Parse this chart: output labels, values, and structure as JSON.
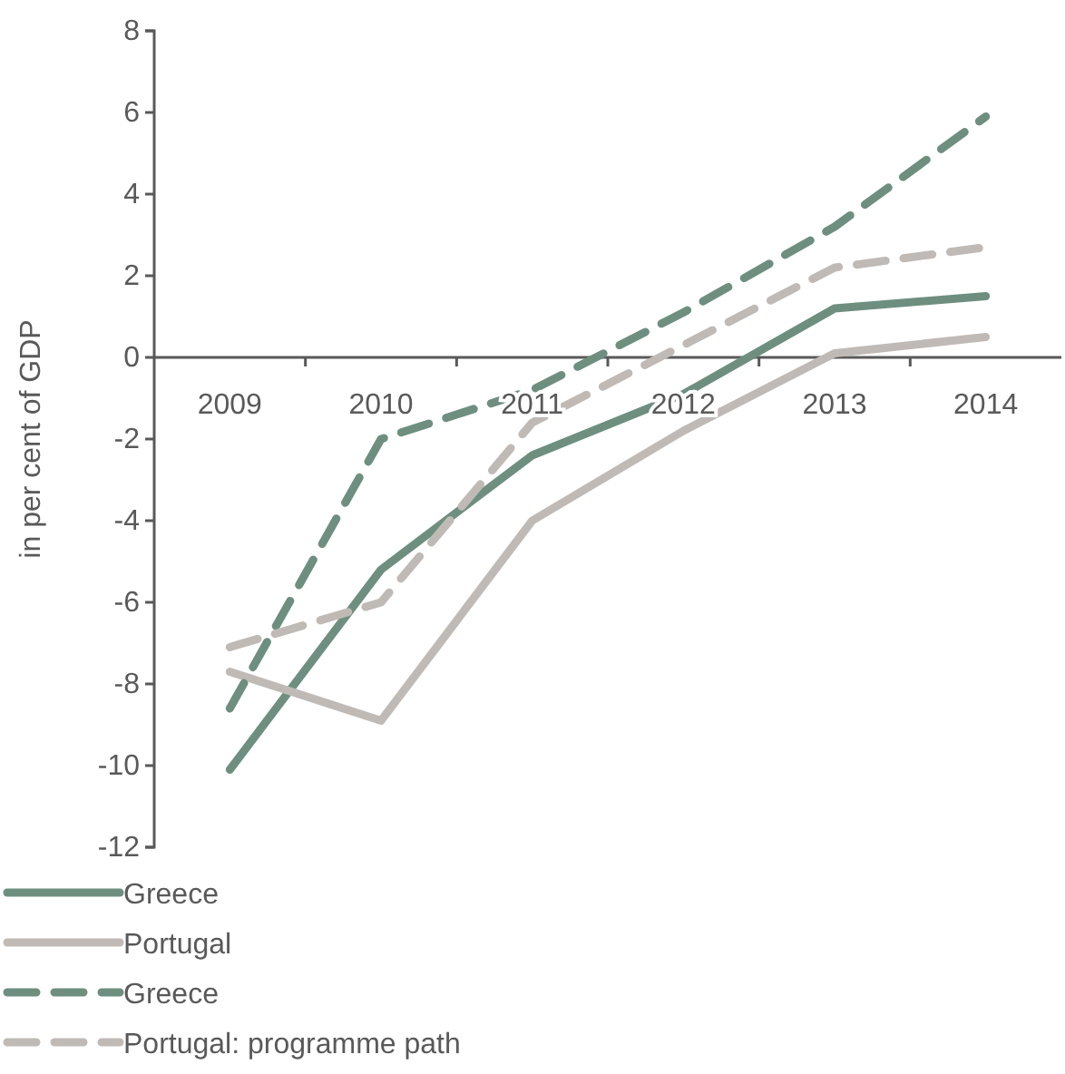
{
  "chart_data": {
    "type": "line",
    "ylabel": "in per cent of GDP",
    "categories": [
      "2009",
      "2010",
      "2011",
      "2012",
      "2013",
      "2014"
    ],
    "ylim": [
      -12,
      8
    ],
    "yticks": [
      -12,
      -10,
      -8,
      -6,
      -4,
      -2,
      0,
      2,
      4,
      6,
      8
    ],
    "grid": false,
    "legend": "bottom",
    "marker": "none",
    "series": [
      {
        "name": "Greece",
        "color": "#6e8f7f",
        "line_style": "solid",
        "values": [
          -10.1,
          -5.2,
          -2.4,
          -0.9,
          1.2,
          1.5
        ]
      },
      {
        "name": "Portugal",
        "color": "#c0bab6",
        "line_style": "solid",
        "values": [
          -7.7,
          -8.9,
          -4.0,
          -1.8,
          0.1,
          0.5
        ]
      },
      {
        "name": "Greece",
        "color": "#6e8f7f",
        "line_style": "dashed",
        "values": [
          -8.6,
          -2.0,
          -0.8,
          1.1,
          3.2,
          5.9
        ]
      },
      {
        "name": "Portugal: programme path",
        "color": "#c0bab6",
        "line_style": "dashed",
        "values": [
          -7.1,
          -6.0,
          -1.6,
          0.3,
          2.2,
          2.7
        ]
      }
    ]
  }
}
